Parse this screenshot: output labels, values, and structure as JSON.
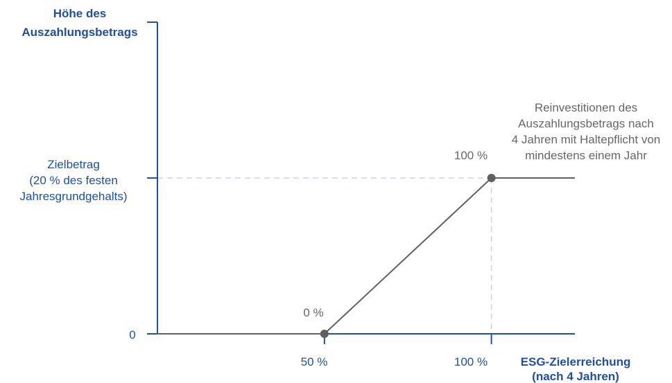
{
  "colors": {
    "axis": "#1f4fa3",
    "line": "#5f5f5f",
    "point": "#5f5f5f",
    "guide": "#c9d3e6",
    "axis_text": "#1f4fa3",
    "note_text": "#666666"
  },
  "chart_data": {
    "type": "line",
    "title": "",
    "ylabel_lines": [
      "Höhe des",
      "Auszahlungsbetrags"
    ],
    "xlabel_lines": [
      "ESG-Zielerreichung",
      "(nach 4 Jahren)"
    ],
    "xlim": [
      0,
      125
    ],
    "ylim": [
      0,
      100
    ],
    "x_ticks": [
      {
        "value": 50,
        "label": "50 %"
      },
      {
        "value": 100,
        "label": "100 %"
      }
    ],
    "y_ticks": [
      {
        "value": 0,
        "label_lines": [
          "0"
        ]
      },
      {
        "value": 100,
        "label_lines": [
          "Zielbetrag",
          "(20 % des festen",
          "Jahresgrundgehalts)"
        ]
      }
    ],
    "series": [
      {
        "x": [
          0,
          50,
          100,
          125
        ],
        "y": [
          0,
          0,
          100,
          100
        ]
      }
    ],
    "points": [
      {
        "x": 50,
        "y": 0,
        "label": "0 %"
      },
      {
        "x": 100,
        "y": 100,
        "label": "100 %"
      }
    ],
    "annotation_lines": [
      "Reinvestitionen des",
      "Auszahlungsbetrags nach",
      "4 Jahren mit Haltepflicht von",
      "mindestens einem Jahr"
    ],
    "grid": false,
    "legend": "none"
  }
}
